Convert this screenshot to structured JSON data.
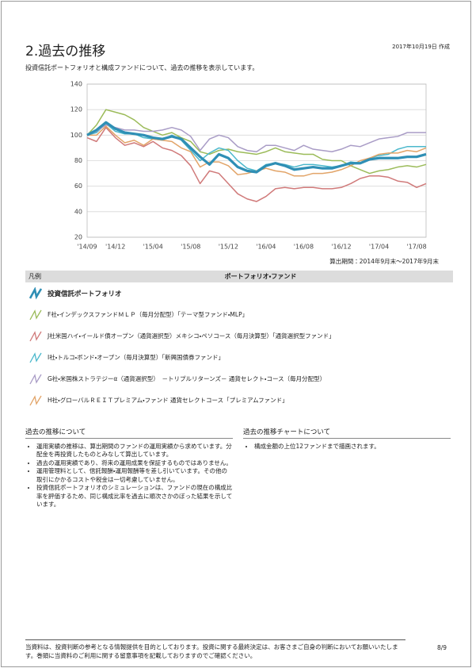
{
  "header": {
    "title": "2.過去の推移",
    "date": "2017年10月19日 作成",
    "subtitle": "投資信託ポートフォリオと構成ファンドについて、過去の推移を表示しています。"
  },
  "chart_data": {
    "type": "line",
    "categories": [
      "'14/09",
      null,
      null,
      "'14/12",
      null,
      null,
      null,
      "'15/04",
      null,
      null,
      null,
      "'15/08",
      null,
      null,
      null,
      "'15/12",
      null,
      null,
      null,
      "'16/04",
      null,
      null,
      null,
      "'16/08",
      null,
      null,
      null,
      "'16/12",
      null,
      null,
      null,
      "'17/04",
      null,
      null,
      null,
      "'17/08",
      null
    ],
    "ylim": [
      20,
      140
    ],
    "yticks": [
      20,
      40,
      60,
      80,
      100,
      120,
      140
    ],
    "grid": true,
    "period_note": "算出期間：2014年9月末～2017年9月末",
    "series": [
      {
        "name": "投資信託ポートフォリオ",
        "color": "#2f8fb5",
        "values": [
          100,
          104,
          110,
          105,
          102,
          101,
          100,
          98,
          97,
          99,
          97,
          90,
          83,
          77,
          85,
          82,
          75,
          72,
          71,
          76,
          78,
          76,
          73,
          74,
          75,
          74,
          74,
          76,
          78,
          78,
          81,
          82,
          82,
          82,
          83,
          83,
          85
        ]
      },
      {
        "name": "F社・インデックスファンドＭＬＰ（毎月分配型）「テーマ型ファンド・MLP」",
        "color": "#9bbb59",
        "values": [
          100,
          108,
          120,
          118,
          116,
          112,
          106,
          103,
          100,
          102,
          98,
          95,
          87,
          85,
          88,
          89,
          87,
          86,
          85,
          87,
          90,
          87,
          86,
          85,
          85,
          81,
          80,
          80,
          76,
          73,
          70,
          72,
          73,
          75,
          76,
          75,
          77
        ]
      },
      {
        "name": "J社米国ハイ・イールド債オープン（通貨選択型）メキシコ・ペソコース（毎月決算型）「通貨選択型ファンド」",
        "color": "#d07a7a",
        "values": [
          98,
          95,
          106,
          98,
          92,
          94,
          91,
          95,
          90,
          88,
          84,
          76,
          62,
          72,
          70,
          62,
          54,
          50,
          48,
          52,
          58,
          59,
          58,
          59,
          59,
          58,
          58,
          59,
          62,
          66,
          68,
          68,
          67,
          64,
          63,
          59,
          62
        ]
      },
      {
        "name": "I社・トルコ・ボンド・オープン（毎月決算型）「新興国債券ファンド」",
        "color": "#4bb8cc",
        "values": [
          100,
          102,
          109,
          103,
          101,
          101,
          98,
          97,
          96,
          100,
          96,
          88,
          80,
          86,
          90,
          88,
          80,
          74,
          72,
          77,
          78,
          77,
          75,
          77,
          77,
          76,
          75,
          76,
          79,
          78,
          82,
          84,
          85,
          89,
          91,
          91,
          91
        ]
      },
      {
        "name": "G社・米国株ストラテジーα（通貨選択型）　－トリプルリターンズ－ 通貨セレクト・コース（毎月分配型）",
        "color": "#a99cc6",
        "values": [
          100,
          103,
          108,
          106,
          104,
          104,
          103,
          103,
          104,
          106,
          104,
          99,
          88,
          97,
          100,
          98,
          91,
          88,
          87,
          92,
          92,
          90,
          88,
          92,
          89,
          88,
          87,
          89,
          92,
          91,
          94,
          97,
          98,
          99,
          102,
          102,
          102
        ]
      },
      {
        "name": "H社・グローバルＲＥＩＴプレミアム・ファンド 通貨セレクトコース「プレミアムファンド」",
        "color": "#e2a468",
        "values": [
          100,
          100,
          107,
          100,
          94,
          96,
          92,
          97,
          96,
          95,
          90,
          87,
          75,
          79,
          79,
          76,
          69,
          70,
          72,
          74,
          72,
          71,
          68,
          68,
          70,
          70,
          71,
          73,
          76,
          80,
          82,
          85,
          86,
          86,
          88,
          87,
          90
        ]
      }
    ]
  },
  "legend_header": {
    "label": "凡例",
    "column": "ポートフォリオ・ファンド"
  },
  "notes": [
    {
      "heading": "過去の推移について",
      "items": [
        "運用実績の推移は、算出期間のファンドの運用実績から求めています。分配金を再投資したものとみなして算出しています。",
        "過去の運用実績であり、将来の運用成果を保証するものではありません。",
        "運用管理料として、信託報酬・運用報酬等を差し引いています。その他の取引にかかるコストや税金は一切考慮していません。",
        "投資信託ポートフォリオのシミュレーションは、ファンドの現在の構成比率を評価するため、同じ構成比率を過去に順次さかのぼった結果を示しています。"
      ]
    },
    {
      "heading": "過去の推移チャートについて",
      "items": [
        "構成金額の上位12ファンドまで描画されます。"
      ]
    }
  ],
  "footer": {
    "text": "当資料は、投資判断の参考となる情報提供を目的としております。投資に関する最終決定は、お客さまご自身の判断においてお願いいたします。巻頭に当資料のご利用に関する留意事項を記載しておりますのでご確認ください。",
    "page": "8/9"
  }
}
